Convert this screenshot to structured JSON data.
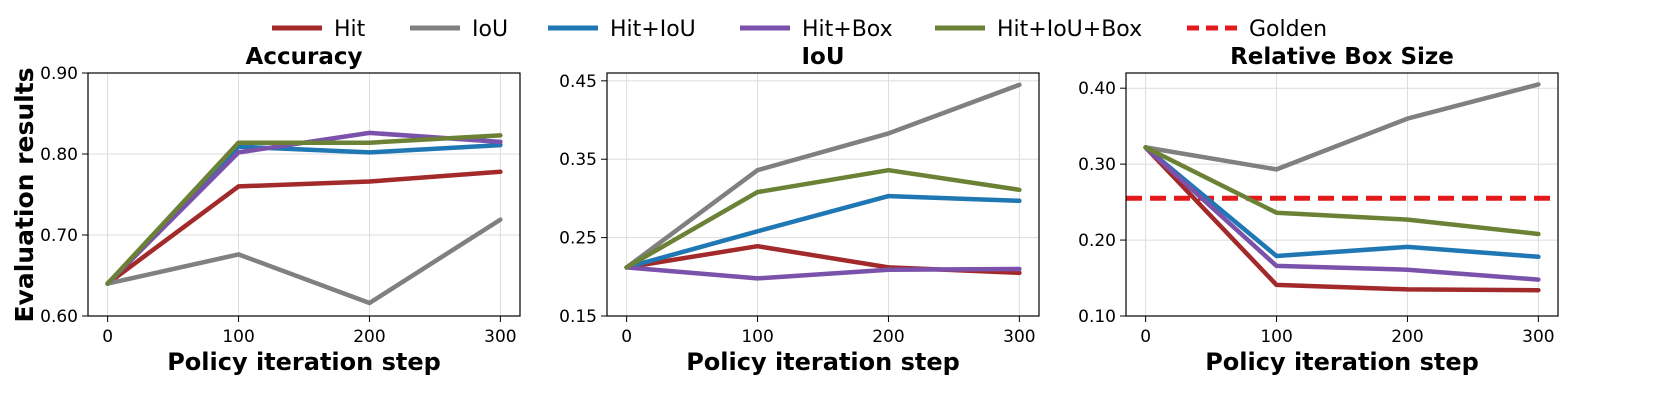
{
  "figure": {
    "shared_ylabel": "Evaluation results",
    "legend": [
      {
        "name": "Hit",
        "color": "#a32a2a",
        "dash": false
      },
      {
        "name": "IoU",
        "color": "#808080",
        "dash": false
      },
      {
        "name": "Hit+IoU",
        "color": "#1f77b4",
        "dash": false
      },
      {
        "name": "Hit+Box",
        "color": "#7b52ab",
        "dash": false
      },
      {
        "name": "Hit+IoU+Box",
        "color": "#6b8236",
        "dash": false
      },
      {
        "name": "Golden",
        "color": "#e31a1c",
        "dash": true
      }
    ]
  },
  "chart_data": [
    {
      "type": "line",
      "title": "Accuracy",
      "xlabel": "Policy iteration step",
      "ylabel": "Evaluation results",
      "x": [
        0,
        100,
        200,
        300
      ],
      "xticks": [
        "0",
        "100",
        "200",
        "300"
      ],
      "xlim": [
        -15,
        315
      ],
      "ylim": [
        0.6,
        0.9
      ],
      "yticks": [
        "0.60",
        "0.70",
        "0.80",
        "0.90"
      ],
      "ytick_values": [
        0.6,
        0.7,
        0.8,
        0.9
      ],
      "grid": true,
      "series": [
        {
          "name": "Hit",
          "color": "#a32a2a",
          "values": [
            0.64,
            0.76,
            0.766,
            0.778
          ]
        },
        {
          "name": "IoU",
          "color": "#808080",
          "values": [
            0.64,
            0.676,
            0.616,
            0.719
          ]
        },
        {
          "name": "Hit+IoU",
          "color": "#1f77b4",
          "values": [
            0.64,
            0.809,
            0.802,
            0.811
          ]
        },
        {
          "name": "Hit+Box",
          "color": "#7b52ab",
          "values": [
            0.64,
            0.802,
            0.826,
            0.815
          ]
        },
        {
          "name": "Hit+IoU+Box",
          "color": "#6b8236",
          "values": [
            0.64,
            0.814,
            0.814,
            0.823
          ]
        }
      ]
    },
    {
      "type": "line",
      "title": "IoU",
      "xlabel": "Policy iteration step",
      "ylabel": "",
      "x": [
        0,
        100,
        200,
        300
      ],
      "xticks": [
        "0",
        "100",
        "200",
        "300"
      ],
      "xlim": [
        -15,
        315
      ],
      "ylim": [
        0.15,
        0.46
      ],
      "yticks": [
        "0.15",
        "0.25",
        "0.35",
        "0.45"
      ],
      "ytick_values": [
        0.15,
        0.25,
        0.35,
        0.45
      ],
      "grid": true,
      "series": [
        {
          "name": "Hit",
          "color": "#a32a2a",
          "values": [
            0.212,
            0.239,
            0.212,
            0.205
          ]
        },
        {
          "name": "IoU",
          "color": "#808080",
          "values": [
            0.212,
            0.336,
            0.383,
            0.445
          ]
        },
        {
          "name": "Hit+IoU",
          "color": "#1f77b4",
          "values": [
            0.212,
            0.258,
            0.303,
            0.297
          ]
        },
        {
          "name": "Hit+Box",
          "color": "#7b52ab",
          "values": [
            0.212,
            0.198,
            0.209,
            0.21
          ]
        },
        {
          "name": "Hit+IoU+Box",
          "color": "#6b8236",
          "values": [
            0.212,
            0.308,
            0.336,
            0.311
          ]
        }
      ]
    },
    {
      "type": "line",
      "title": "Relative Box Size",
      "xlabel": "Policy iteration step",
      "ylabel": "",
      "x": [
        0,
        100,
        200,
        300
      ],
      "xticks": [
        "0",
        "100",
        "200",
        "300"
      ],
      "xlim": [
        -15,
        315
      ],
      "ylim": [
        0.1,
        0.42
      ],
      "yticks": [
        "0.10",
        "0.20",
        "0.30",
        "0.40"
      ],
      "ytick_values": [
        0.1,
        0.2,
        0.3,
        0.4
      ],
      "grid": true,
      "series": [
        {
          "name": "Hit",
          "color": "#a32a2a",
          "values": [
            0.322,
            0.141,
            0.135,
            0.134
          ]
        },
        {
          "name": "IoU",
          "color": "#808080",
          "values": [
            0.322,
            0.293,
            0.36,
            0.405
          ]
        },
        {
          "name": "Hit+IoU",
          "color": "#1f77b4",
          "values": [
            0.322,
            0.179,
            0.191,
            0.178
          ]
        },
        {
          "name": "Hit+Box",
          "color": "#7b52ab",
          "values": [
            0.322,
            0.166,
            0.161,
            0.148
          ]
        },
        {
          "name": "Hit+IoU+Box",
          "color": "#6b8236",
          "values": [
            0.322,
            0.236,
            0.227,
            0.208
          ]
        }
      ],
      "reference_line": {
        "name": "Golden",
        "color": "#e31a1c",
        "value": 0.255,
        "dash": true
      }
    }
  ]
}
